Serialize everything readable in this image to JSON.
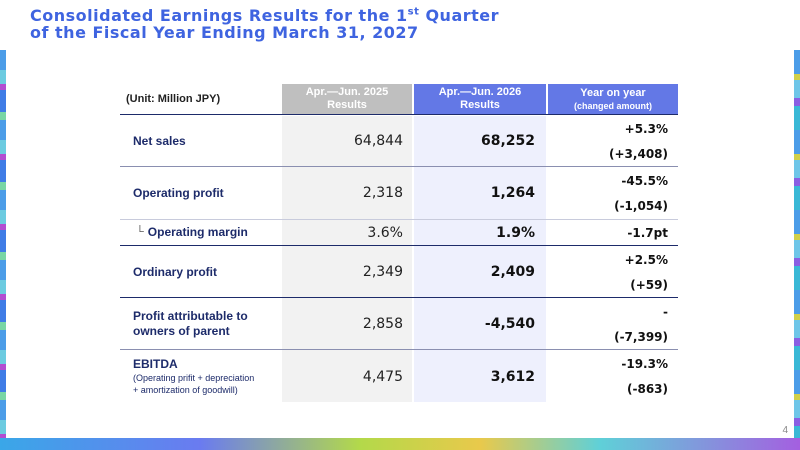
{
  "title": {
    "line1_pre": "Consolidated Earnings Results for the 1",
    "line1_sup": "st",
    "line1_post": " Quarter",
    "line2": "of the Fiscal Year Ending March 31, 2027"
  },
  "table": {
    "unit": "(Unit: Million JPY)",
    "headers": {
      "prev_l1": "Apr.—Jun. 2025",
      "prev_l2": "Results",
      "curr_l1": "Apr.—Jun. 2026",
      "curr_l2": "Results",
      "yoy_l1": "Year on year",
      "yoy_l2": "(changed amount)"
    },
    "rows": [
      {
        "label": "Net sales",
        "prev": "64,844",
        "curr": "68,252",
        "yoy_pct": "+5.3%",
        "yoy_amt": "(+3,408)"
      },
      {
        "label": "Operating profit",
        "prev": "2,318",
        "curr": "1,264",
        "yoy_pct": "-45.5%",
        "yoy_amt": "(-1,054)"
      },
      {
        "label": "Operating margin",
        "tree": "└",
        "prev": "3.6%",
        "curr": "1.9%",
        "yoy_pct": "-1.7pt"
      },
      {
        "label": "Ordinary profit",
        "prev": "2,349",
        "curr": "2,409",
        "yoy_pct": "+2.5%",
        "yoy_amt": "(+59)"
      },
      {
        "label1": "Profit attributable to",
        "label2": "owners of parent",
        "prev": "2,858",
        "curr": "-4,540",
        "yoy_pct": "-",
        "yoy_amt": "(-7,399)"
      },
      {
        "label": "EBITDA",
        "note1": "(Operating prifit + depreciation",
        "note2": "+ amortization of goodwill)",
        "prev": "4,475",
        "curr": "3,612",
        "yoy_pct": "-19.3%",
        "yoy_amt": "(-863)"
      }
    ]
  },
  "page_number": "4"
}
